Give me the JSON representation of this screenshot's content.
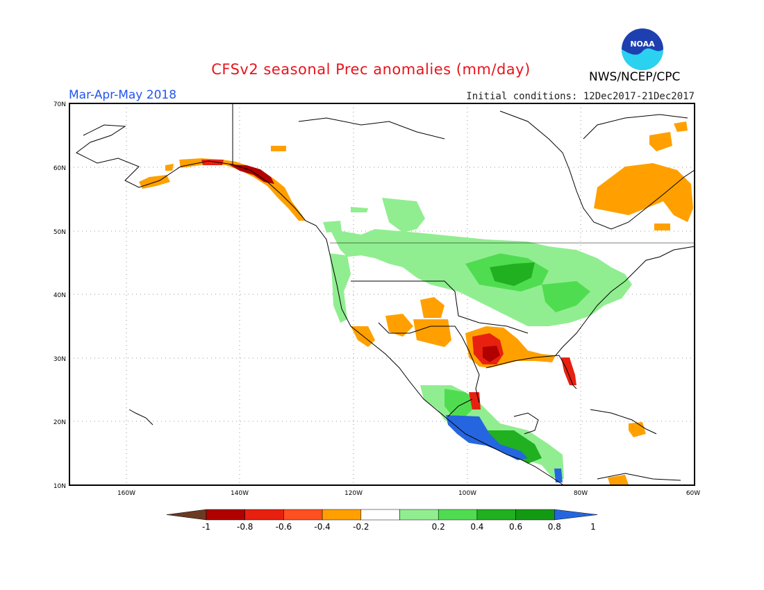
{
  "title": "CFSv2 seasonal Prec anomalies (mm/day)",
  "season": "Mar-Apr-May 2018",
  "initial_conditions": "Initial conditions: 12Dec2017-21Dec2017",
  "agency": "NWS/NCEP/CPC",
  "logo_text": "NOAA",
  "lat_labels": [
    "70N",
    "60N",
    "50N",
    "40N",
    "30N",
    "20N",
    "10N"
  ],
  "lon_labels": [
    "160W",
    "140W",
    "120W",
    "100W",
    "80W",
    "60W"
  ],
  "colorbar": {
    "labels": [
      "-1",
      "-0.8",
      "-0.6",
      "-0.4",
      "-0.2",
      "0.2",
      "0.4",
      "0.6",
      "0.8",
      "1"
    ],
    "colors": [
      "#6b3a22",
      "#b00000",
      "#e82010",
      "#ff5020",
      "#ffa000",
      "#ffffff",
      "#90ee90",
      "#50dc50",
      "#20b020",
      "#129a12",
      "#2566e0"
    ]
  },
  "map_extent": {
    "lon": [
      -170,
      -60
    ],
    "lat": [
      10,
      70
    ]
  },
  "anomaly_regions": [
    {
      "name": "Alaska coast",
      "category": "-0.4 to -0.2"
    },
    {
      "name": "Southeast Alaska",
      "category": "-0.8 to -0.6"
    },
    {
      "name": "Texas / Louisiana",
      "category": "-1 to -0.6"
    },
    {
      "name": "Florida",
      "category": "-0.6 to -0.4"
    },
    {
      "name": "Northern Plains / Midwest",
      "category": "0.2 to 0.8"
    },
    {
      "name": "Southern Mexico / Central America",
      "category": "0.8 to 1"
    },
    {
      "name": "Quebec / Labrador",
      "category": "-0.4 to -0.2"
    }
  ]
}
